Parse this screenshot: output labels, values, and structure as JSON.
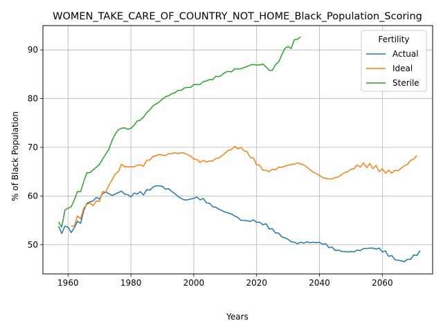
{
  "chart_data": {
    "type": "line",
    "title": "WOMEN_TAKE_CARE_OF_COUNTRY_NOT_HOME_Black_Population_Scoring",
    "xlabel": "Years",
    "ylabel": "% of Black Population",
    "xlim": [
      1952,
      2076
    ],
    "ylim": [
      44,
      95
    ],
    "xticks": [
      1960,
      1980,
      2000,
      2020,
      2040,
      2060
    ],
    "yticks": [
      50,
      60,
      70,
      80,
      90
    ],
    "grid": true,
    "legend": {
      "title": "Fertility",
      "placement": "top-right"
    },
    "series": [
      {
        "name": "Actual",
        "color": "#1f77b4",
        "points": [
          [
            1957,
            53.8
          ],
          [
            1958,
            52.3
          ],
          [
            1959,
            53.8
          ],
          [
            1960,
            53.6
          ],
          [
            1961,
            52.5
          ],
          [
            1962,
            53.5
          ],
          [
            1963,
            54.8
          ],
          [
            1964,
            54.4
          ],
          [
            1965,
            57
          ],
          [
            1966,
            58.5
          ],
          [
            1967,
            58.8
          ],
          [
            1968,
            59
          ],
          [
            1969,
            59.7
          ],
          [
            1970,
            59.4
          ],
          [
            1971,
            60.5
          ],
          [
            1972,
            60.8
          ],
          [
            1973,
            60.5
          ],
          [
            1974,
            60.1
          ],
          [
            1975,
            60.4
          ],
          [
            1976,
            60.7
          ],
          [
            1977,
            61
          ],
          [
            1978,
            60.4
          ],
          [
            1979,
            60.3
          ],
          [
            1980,
            59.8
          ],
          [
            1981,
            60.6
          ],
          [
            1982,
            60.4
          ],
          [
            1983,
            60.9
          ],
          [
            1984,
            60.2
          ],
          [
            1985,
            61.3
          ],
          [
            1986,
            61.2
          ],
          [
            1987,
            61.8
          ],
          [
            1988,
            62.1
          ],
          [
            1989,
            62.1
          ],
          [
            1990,
            62
          ],
          [
            1991,
            61.4
          ],
          [
            1992,
            61.5
          ],
          [
            1993,
            60.9
          ],
          [
            1994,
            60.5
          ],
          [
            1995,
            59.9
          ],
          [
            1996,
            59.5
          ],
          [
            1997,
            59.2
          ],
          [
            1998,
            59.2
          ],
          [
            1999,
            59.4
          ],
          [
            2000,
            59.5
          ],
          [
            2001,
            59.8
          ],
          [
            2002,
            59.2
          ],
          [
            2003,
            59.5
          ],
          [
            2004,
            58.6
          ],
          [
            2005,
            58.5
          ],
          [
            2006,
            57.8
          ],
          [
            2007,
            57.7
          ],
          [
            2008,
            57.3
          ],
          [
            2009,
            57
          ],
          [
            2010,
            56.7
          ],
          [
            2011,
            56.5
          ],
          [
            2012,
            56.3
          ],
          [
            2013,
            55.9
          ],
          [
            2014,
            55.6
          ],
          [
            2015,
            55
          ],
          [
            2016,
            55
          ],
          [
            2017,
            54.9
          ],
          [
            2018,
            54.8
          ],
          [
            2019,
            55.1
          ],
          [
            2020,
            54.6
          ],
          [
            2021,
            54.6
          ],
          [
            2022,
            54.1
          ],
          [
            2023,
            54.3
          ],
          [
            2024,
            53.2
          ],
          [
            2025,
            53.3
          ],
          [
            2026,
            52.4
          ],
          [
            2027,
            52.4
          ],
          [
            2028,
            51.6
          ],
          [
            2029,
            51.4
          ],
          [
            2030,
            51.1
          ],
          [
            2031,
            50.6
          ],
          [
            2032,
            50.5
          ],
          [
            2033,
            50.2
          ],
          [
            2034,
            50.5
          ],
          [
            2035,
            50.3
          ],
          [
            2036,
            50.6
          ],
          [
            2037,
            50.4
          ],
          [
            2038,
            50.5
          ],
          [
            2039,
            50.4
          ],
          [
            2040,
            50.5
          ],
          [
            2041,
            50.1
          ],
          [
            2042,
            50.2
          ],
          [
            2043,
            49.4
          ],
          [
            2044,
            49.5
          ],
          [
            2045,
            48.8
          ],
          [
            2046,
            48.9
          ],
          [
            2047,
            48.6
          ],
          [
            2048,
            48.6
          ],
          [
            2049,
            48.5
          ],
          [
            2050,
            48.6
          ],
          [
            2051,
            48.5
          ],
          [
            2052,
            48.9
          ],
          [
            2053,
            48.8
          ],
          [
            2054,
            49.2
          ],
          [
            2055,
            49.2
          ],
          [
            2056,
            49.3
          ],
          [
            2057,
            49.3
          ],
          [
            2058,
            49.1
          ],
          [
            2059,
            49.3
          ],
          [
            2060,
            48.5
          ],
          [
            2061,
            48.7
          ],
          [
            2062,
            47.6
          ],
          [
            2063,
            47.8
          ],
          [
            2064,
            46.9
          ],
          [
            2065,
            46.8
          ],
          [
            2066,
            46.7
          ],
          [
            2067,
            46.5
          ],
          [
            2068,
            47
          ],
          [
            2069,
            47
          ],
          [
            2070,
            47.9
          ],
          [
            2071,
            47.8
          ],
          [
            2072,
            48.8
          ]
        ]
      },
      {
        "name": "Ideal",
        "color": "#ff7f0e",
        "points": [
          [
            1961,
            53.8
          ],
          [
            1962,
            53.8
          ],
          [
            1963,
            55.9
          ],
          [
            1964,
            55.3
          ],
          [
            1965,
            57.5
          ],
          [
            1966,
            58.3
          ],
          [
            1967,
            58.6
          ],
          [
            1968,
            58
          ],
          [
            1969,
            59
          ],
          [
            1970,
            58.9
          ],
          [
            1971,
            60.9
          ],
          [
            1972,
            60.8
          ],
          [
            1973,
            62.2
          ],
          [
            1974,
            63.3
          ],
          [
            1975,
            64.5
          ],
          [
            1976,
            65
          ],
          [
            1977,
            66.5
          ],
          [
            1978,
            66
          ],
          [
            1979,
            66
          ],
          [
            1980,
            66
          ],
          [
            1981,
            66
          ],
          [
            1982,
            66.3
          ],
          [
            1983,
            66.4
          ],
          [
            1984,
            66.1
          ],
          [
            1985,
            67.3
          ],
          [
            1986,
            67.4
          ],
          [
            1987,
            68.1
          ],
          [
            1988,
            68.3
          ],
          [
            1989,
            68.5
          ],
          [
            1990,
            68.4
          ],
          [
            1991,
            68.3
          ],
          [
            1992,
            68.7
          ],
          [
            1993,
            68.7
          ],
          [
            1994,
            68.9
          ],
          [
            1995,
            68.7
          ],
          [
            1996,
            68.9
          ],
          [
            1997,
            68.8
          ],
          [
            1998,
            68.5
          ],
          [
            1999,
            68.2
          ],
          [
            2000,
            67.6
          ],
          [
            2001,
            67.5
          ],
          [
            2002,
            66.9
          ],
          [
            2003,
            67.3
          ],
          [
            2004,
            67
          ],
          [
            2005,
            67.2
          ],
          [
            2006,
            67.2
          ],
          [
            2007,
            67.7
          ],
          [
            2008,
            67.8
          ],
          [
            2009,
            68.3
          ],
          [
            2010,
            68.8
          ],
          [
            2011,
            69.4
          ],
          [
            2012,
            69.5
          ],
          [
            2013,
            70.2
          ],
          [
            2014,
            69.7
          ],
          [
            2015,
            70
          ],
          [
            2016,
            69.3
          ],
          [
            2017,
            69.1
          ],
          [
            2018,
            67.9
          ],
          [
            2019,
            67.8
          ],
          [
            2020,
            66.4
          ],
          [
            2021,
            66.3
          ],
          [
            2022,
            65.3
          ],
          [
            2023,
            65.3
          ],
          [
            2024,
            65
          ],
          [
            2025,
            65.5
          ],
          [
            2026,
            65.4
          ],
          [
            2027,
            65.9
          ],
          [
            2028,
            65.9
          ],
          [
            2029,
            66.1
          ],
          [
            2030,
            66.3
          ],
          [
            2031,
            66.5
          ],
          [
            2032,
            66.5
          ],
          [
            2033,
            66.8
          ],
          [
            2034,
            66.6
          ],
          [
            2035,
            66.4
          ],
          [
            2036,
            65.9
          ],
          [
            2037,
            65.4
          ],
          [
            2038,
            64.9
          ],
          [
            2039,
            64.6
          ],
          [
            2040,
            64.2
          ],
          [
            2041,
            63.8
          ],
          [
            2042,
            63.6
          ],
          [
            2043,
            63.5
          ],
          [
            2044,
            63.5
          ],
          [
            2045,
            63.8
          ],
          [
            2046,
            63.9
          ],
          [
            2047,
            64.4
          ],
          [
            2048,
            64.8
          ],
          [
            2049,
            65
          ],
          [
            2050,
            65.5
          ],
          [
            2051,
            65.6
          ],
          [
            2052,
            66.4
          ],
          [
            2053,
            65.9
          ],
          [
            2054,
            66.8
          ],
          [
            2055,
            65.8
          ],
          [
            2056,
            66.7
          ],
          [
            2057,
            65.6
          ],
          [
            2058,
            66.3
          ],
          [
            2059,
            65
          ],
          [
            2060,
            65.6
          ],
          [
            2061,
            64.7
          ],
          [
            2062,
            65.3
          ],
          [
            2063,
            64.7
          ],
          [
            2064,
            65.3
          ],
          [
            2065,
            65.2
          ],
          [
            2066,
            65.7
          ],
          [
            2067,
            66.2
          ],
          [
            2068,
            66.5
          ],
          [
            2069,
            67.3
          ],
          [
            2070,
            67.6
          ],
          [
            2071,
            68.3
          ]
        ]
      },
      {
        "name": "Sterile",
        "color": "#2ca02c",
        "points": [
          [
            1957,
            54.7
          ],
          [
            1958,
            53.6
          ],
          [
            1959,
            57.1
          ],
          [
            1960,
            57.5
          ],
          [
            1961,
            57.8
          ],
          [
            1962,
            59.2
          ],
          [
            1963,
            60.9
          ],
          [
            1964,
            60.9
          ],
          [
            1965,
            63
          ],
          [
            1966,
            64.8
          ],
          [
            1967,
            64.8
          ],
          [
            1968,
            65.4
          ],
          [
            1969,
            65.9
          ],
          [
            1970,
            66.5
          ],
          [
            1971,
            67.6
          ],
          [
            1972,
            68.6
          ],
          [
            1973,
            69.6
          ],
          [
            1974,
            71.4
          ],
          [
            1975,
            72.7
          ],
          [
            1976,
            73.6
          ],
          [
            1977,
            73.9
          ],
          [
            1978,
            74
          ],
          [
            1979,
            73.7
          ],
          [
            1980,
            73.9
          ],
          [
            1981,
            74.5
          ],
          [
            1982,
            75.4
          ],
          [
            1983,
            75.6
          ],
          [
            1984,
            76.2
          ],
          [
            1985,
            77.1
          ],
          [
            1986,
            77.7
          ],
          [
            1987,
            78.5
          ],
          [
            1988,
            78.9
          ],
          [
            1989,
            79.3
          ],
          [
            1990,
            79.9
          ],
          [
            1991,
            80.4
          ],
          [
            1992,
            80.6
          ],
          [
            1993,
            81
          ],
          [
            1994,
            81.2
          ],
          [
            1995,
            81.7
          ],
          [
            1996,
            81.7
          ],
          [
            1997,
            82.2
          ],
          [
            1998,
            82.3
          ],
          [
            1999,
            82.3
          ],
          [
            2000,
            82.9
          ],
          [
            2001,
            82.9
          ],
          [
            2002,
            82.9
          ],
          [
            2003,
            83.5
          ],
          [
            2004,
            83.6
          ],
          [
            2005,
            83.9
          ],
          [
            2006,
            83.9
          ],
          [
            2007,
            84.6
          ],
          [
            2008,
            84.5
          ],
          [
            2009,
            84.9
          ],
          [
            2010,
            85.4
          ],
          [
            2011,
            85.6
          ],
          [
            2012,
            85.5
          ],
          [
            2013,
            86.1
          ],
          [
            2014,
            86.1
          ],
          [
            2015,
            86.1
          ],
          [
            2016,
            86.4
          ],
          [
            2017,
            86.6
          ],
          [
            2018,
            86.9
          ],
          [
            2019,
            87
          ],
          [
            2020,
            86.9
          ],
          [
            2021,
            86.9
          ],
          [
            2022,
            87.1
          ],
          [
            2023,
            86.5
          ],
          [
            2024,
            85.8
          ],
          [
            2025,
            85.8
          ],
          [
            2026,
            87
          ],
          [
            2027,
            87.5
          ],
          [
            2028,
            89
          ],
          [
            2029,
            90.3
          ],
          [
            2030,
            90.7
          ],
          [
            2031,
            90.3
          ],
          [
            2032,
            92.1
          ],
          [
            2033,
            92.2
          ],
          [
            2034,
            92.7
          ]
        ]
      }
    ]
  }
}
